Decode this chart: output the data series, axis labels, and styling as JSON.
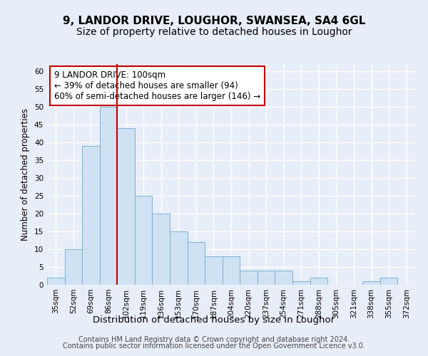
{
  "title1": "9, LANDOR DRIVE, LOUGHOR, SWANSEA, SA4 6GL",
  "title2": "Size of property relative to detached houses in Loughor",
  "xlabel": "Distribution of detached houses by size in Loughor",
  "ylabel": "Number of detached properties",
  "categories": [
    "35sqm",
    "52sqm",
    "69sqm",
    "86sqm",
    "102sqm",
    "119sqm",
    "136sqm",
    "153sqm",
    "170sqm",
    "187sqm",
    "204sqm",
    "220sqm",
    "237sqm",
    "254sqm",
    "271sqm",
    "288sqm",
    "305sqm",
    "321sqm",
    "338sqm",
    "355sqm",
    "372sqm"
  ],
  "values": [
    2,
    10,
    39,
    50,
    44,
    25,
    20,
    15,
    12,
    8,
    8,
    4,
    4,
    4,
    1,
    2,
    0,
    0,
    1,
    2,
    0
  ],
  "bar_color": "#cfe2f3",
  "bar_edge_color": "#7bafd4",
  "vline_index": 4,
  "vline_color": "#c00000",
  "ylim": [
    0,
    62
  ],
  "yticks": [
    0,
    5,
    10,
    15,
    20,
    25,
    30,
    35,
    40,
    45,
    50,
    55,
    60
  ],
  "annotation_text": "9 LANDOR DRIVE: 100sqm\n← 39% of detached houses are smaller (94)\n60% of semi-detached houses are larger (146) →",
  "annotation_box_color": "#ffffff",
  "annotation_box_edge": "#c00000",
  "footer1": "Contains HM Land Registry data © Crown copyright and database right 2024.",
  "footer2": "Contains public sector information licensed under the Open Government Licence v3.0.",
  "bg_color": "#e8eef8",
  "plot_bg_color": "#e8eef8",
  "grid_color": "#ffffff",
  "title1_fontsize": 11,
  "title2_fontsize": 10,
  "xlabel_fontsize": 9.5,
  "ylabel_fontsize": 8.5,
  "tick_fontsize": 7.5,
  "annotation_fontsize": 8.5,
  "footer_fontsize": 7
}
